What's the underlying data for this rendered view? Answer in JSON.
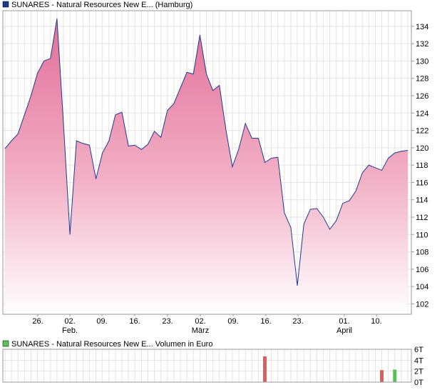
{
  "chart_data": [
    {
      "type": "area",
      "legend_label": "SUNARES - Natural Resources New E... (Hamburg)",
      "series_color": "#1f3a8f",
      "fill_top": "#e26e98",
      "fill_bottom": "#ffffff",
      "ylim": [
        100.8,
        135.8
      ],
      "yticks": [
        102,
        104,
        106,
        108,
        110,
        112,
        114,
        116,
        118,
        120,
        122,
        124,
        126,
        128,
        130,
        132,
        134
      ],
      "xtick_labels": [
        {
          "label": "26.",
          "sub": ""
        },
        {
          "label": "02.",
          "sub": "Feb."
        },
        {
          "label": "09.",
          "sub": ""
        },
        {
          "label": "16.",
          "sub": ""
        },
        {
          "label": "23.",
          "sub": ""
        },
        {
          "label": "02.",
          "sub": "März"
        },
        {
          "label": "09.",
          "sub": ""
        },
        {
          "label": "16.",
          "sub": ""
        },
        {
          "label": "23.",
          "sub": ""
        },
        {
          "label": "01.",
          "sub": "April"
        },
        {
          "label": "10.",
          "sub": ""
        }
      ],
      "values": [
        119.9,
        120.8,
        121.6,
        123.8,
        126.0,
        128.6,
        130.0,
        130.3,
        134.9,
        122.8,
        110.0,
        120.8,
        120.5,
        120.3,
        116.4,
        119.4,
        120.8,
        123.8,
        124.1,
        120.2,
        120.3,
        119.8,
        120.4,
        121.9,
        121.2,
        124.3,
        125.1,
        126.9,
        128.7,
        128.5,
        133.0,
        128.5,
        126.6,
        127.2,
        122.1,
        117.8,
        119.9,
        122.8,
        121.1,
        121.1,
        118.3,
        118.8,
        118.9,
        112.5,
        110.8,
        104.1,
        111.2,
        112.9,
        113.0,
        112.0,
        110.6,
        111.6,
        113.6,
        113.9,
        115.0,
        117.1,
        118.0,
        117.7,
        117.4,
        118.8,
        119.4,
        119.6,
        119.7
      ]
    },
    {
      "type": "bar",
      "legend_label": "SUNARES - Natural Resources New E... Volumen in Euro",
      "legend_color": "#5bc25b",
      "ylim": [
        0,
        6
      ],
      "yticks": [
        {
          "value": 0,
          "label": "0T"
        },
        {
          "value": 2,
          "label": "2T"
        },
        {
          "value": 4,
          "label": "4T"
        },
        {
          "value": 6,
          "label": "6T"
        }
      ],
      "bars": [
        {
          "index": 40,
          "value": 4.7,
          "color": "#d9605e"
        },
        {
          "index": 58,
          "value": 2.2,
          "color": "#d9605e"
        },
        {
          "index": 60,
          "value": 2.3,
          "color": "#5bc25b"
        }
      ]
    }
  ]
}
